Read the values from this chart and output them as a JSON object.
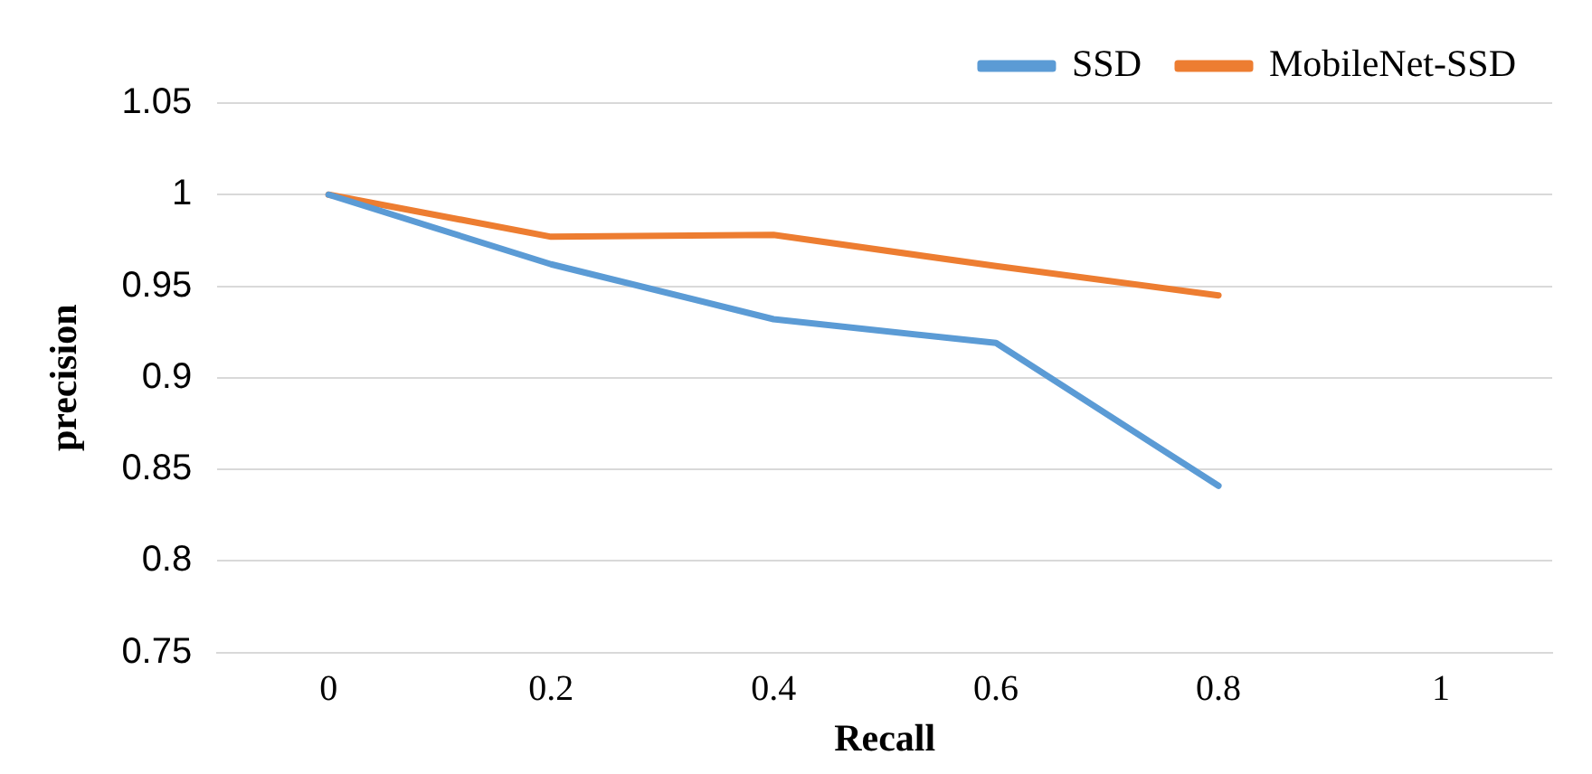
{
  "chart_data": {
    "type": "line",
    "xlabel": "Recall",
    "ylabel": "precision",
    "categories": [
      "0",
      "0.2",
      "0.4",
      "0.6",
      "0.8",
      "1"
    ],
    "series": [
      {
        "name": "SSD",
        "color": "#5b9bd5",
        "values": [
          1,
          0.962,
          0.932,
          0.919,
          0.841,
          null
        ]
      },
      {
        "name": "MobileNet-SSD",
        "color": "#ed7d31",
        "values": [
          1,
          0.977,
          0.978,
          0.961,
          0.945,
          null
        ]
      }
    ],
    "ylim": [
      0.75,
      1.05
    ],
    "yticks": [
      0.75,
      0.8,
      0.85,
      0.9,
      0.95,
      1,
      1.05
    ],
    "grid": "y",
    "legend": "top right",
    "marker": "none",
    "line_style": "solid"
  }
}
